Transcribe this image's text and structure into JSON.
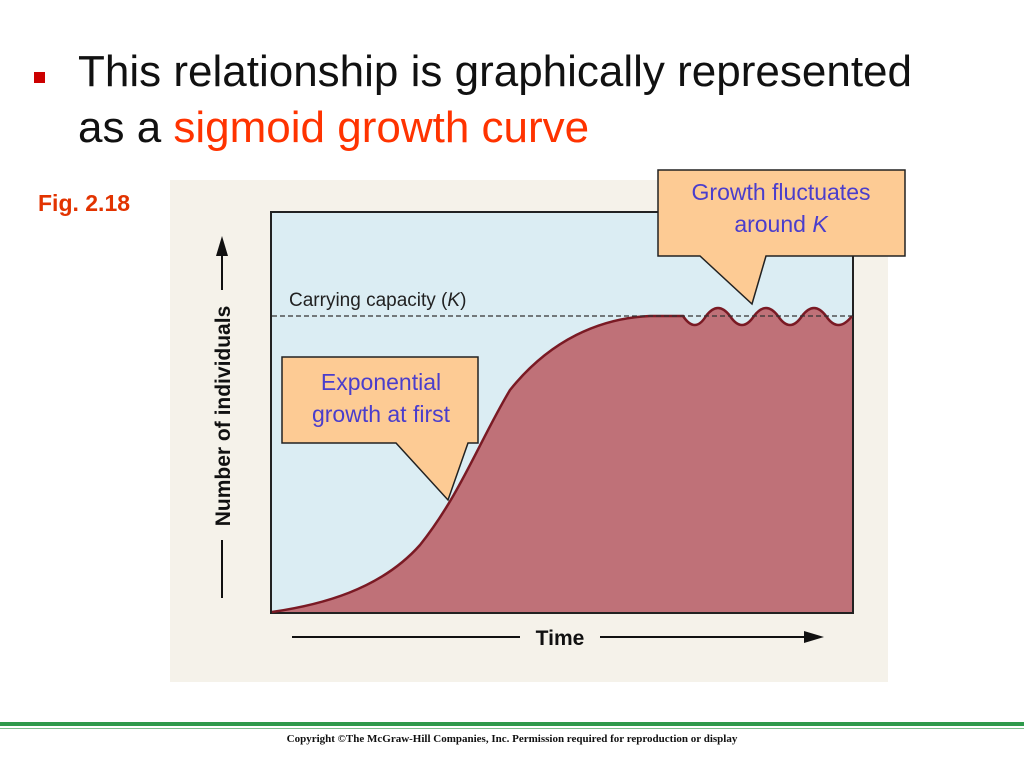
{
  "slide": {
    "line1": "This relationship is graphically represented",
    "line2_prefix": "as a ",
    "line2_highlight": "sigmoid growth curve",
    "fig_label": "Fig. 2.18",
    "copyright": "Copyright ©The McGraw-Hill Companies, Inc. Permission required for reproduction or display"
  },
  "figure": {
    "y_axis_label": "Number of individuals",
    "x_axis_label": "Time",
    "carrying_capacity_label": "Carrying capacity (",
    "k_symbol": "K",
    "carrying_capacity_close": ")",
    "callout_growth_line1": "Growth fluctuates",
    "callout_growth_line2": "around ",
    "callout_growth_k": "K",
    "callout_exp_line1": "Exponential",
    "callout_exp_line2": "growth at first"
  },
  "colors": {
    "plot_bg": "#dbedf3",
    "curve_fill": "#bf7178",
    "curve_stroke": "#7a1a24",
    "callout_bg": "#fdcb94",
    "callout_text": "#4a3dcc",
    "headline_highlight": "#ff3300",
    "footer_rule": "#2e9a4a"
  }
}
